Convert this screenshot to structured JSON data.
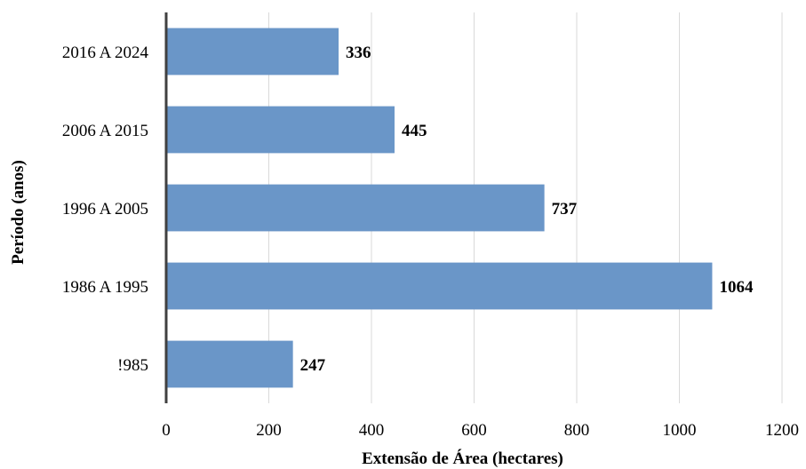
{
  "chart_data": {
    "type": "bar",
    "orientation": "horizontal",
    "categories": [
      "2016 A 2024",
      "2006 A 2015",
      "1996 A 2005",
      "1986 A 1995",
      "!985"
    ],
    "values": [
      336,
      445,
      737,
      1064,
      247
    ],
    "xlabel": "Extensão de Área (hectares)",
    "ylabel": "Período (anos)",
    "xlim": [
      0,
      1200
    ],
    "xticks": [
      "0",
      "200",
      "400",
      "600",
      "800",
      "1000",
      "1200"
    ],
    "grid": "vertical",
    "legend": "none",
    "bar_color": "#6a96c8",
    "axis_color": "#404040"
  }
}
